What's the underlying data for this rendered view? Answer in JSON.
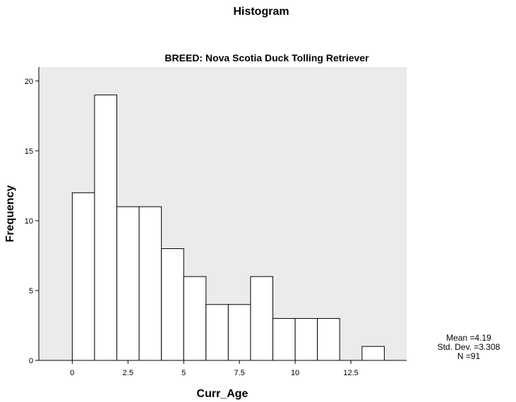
{
  "chart_data": {
    "type": "bar",
    "title": "Histogram",
    "subtitle": "BREED: Nova Scotia Duck Tolling Retriever",
    "xlabel": "Curr_Age",
    "ylabel": "Frequency",
    "bin_width": 1,
    "bins": [
      {
        "start": 0,
        "end": 1,
        "value": 12
      },
      {
        "start": 1,
        "end": 2,
        "value": 19
      },
      {
        "start": 2,
        "end": 3,
        "value": 11
      },
      {
        "start": 3,
        "end": 4,
        "value": 11
      },
      {
        "start": 4,
        "end": 5,
        "value": 8
      },
      {
        "start": 5,
        "end": 6,
        "value": 6
      },
      {
        "start": 6,
        "end": 7,
        "value": 4
      },
      {
        "start": 7,
        "end": 8,
        "value": 4
      },
      {
        "start": 8,
        "end": 9,
        "value": 6
      },
      {
        "start": 9,
        "end": 10,
        "value": 3
      },
      {
        "start": 10,
        "end": 11,
        "value": 3
      },
      {
        "start": 11,
        "end": 12,
        "value": 3
      },
      {
        "start": 12,
        "end": 13,
        "value": 0
      },
      {
        "start": 13,
        "end": 14,
        "value": 1
      }
    ],
    "xlim": [
      -1.5,
      15
    ],
    "ylim": [
      0,
      21
    ],
    "x_ticks": [
      0,
      2.5,
      5,
      7.5,
      10,
      12.5
    ],
    "x_tick_labels": [
      "0",
      "2.5",
      "5",
      "7.5",
      "10",
      "12.5"
    ],
    "y_ticks": [
      0,
      5,
      10,
      15,
      20
    ],
    "y_tick_labels": [
      "0",
      "5",
      "10",
      "15",
      "20"
    ],
    "grid": false,
    "plot_background": "#ebebeb",
    "bar_fill": "#ffffff",
    "bar_stroke": "#000000",
    "stats": {
      "mean": "Mean =4.19",
      "std": "Std. Dev. =3.308",
      "n": "N =91"
    }
  }
}
